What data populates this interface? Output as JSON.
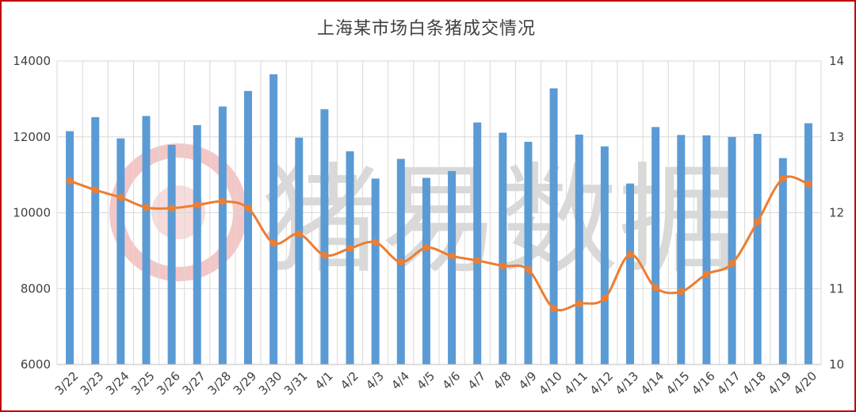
{
  "watermark": {
    "text": "猪易数据"
  },
  "colors": {
    "bar": "#5b9bd5",
    "line": "#ed7d31",
    "border": "#c00000",
    "grid": "#d9d9d9"
  },
  "chart_data": {
    "type": "bar",
    "title": "上海某市场白条猪成交情况",
    "categories": [
      "3/22",
      "3/23",
      "3/24",
      "3/25",
      "3/26",
      "3/27",
      "3/28",
      "3/29",
      "3/30",
      "3/31",
      "4/1",
      "4/2",
      "4/3",
      "4/4",
      "4/5",
      "4/6",
      "4/7",
      "4/8",
      "4/9",
      "4/10",
      "4/11",
      "4/12",
      "4/13",
      "4/14",
      "4/15",
      "4/16",
      "4/17",
      "4/18",
      "4/19",
      "4/20"
    ],
    "series": [
      {
        "type": "bar",
        "axis": "left",
        "values": [
          12150,
          12520,
          11960,
          12550,
          11790,
          12310,
          12800,
          13210,
          13650,
          11980,
          12730,
          11620,
          10900,
          11420,
          10920,
          11100,
          12380,
          12110,
          11870,
          13280,
          12060,
          11750,
          10770,
          12260,
          12050,
          12040,
          12000,
          12080,
          11440,
          12360
        ]
      },
      {
        "type": "line",
        "axis": "right",
        "values": [
          12.42,
          12.3,
          12.2,
          12.07,
          12.06,
          12.1,
          12.15,
          12.06,
          11.6,
          11.72,
          11.44,
          11.53,
          11.61,
          11.35,
          11.54,
          11.43,
          11.37,
          11.3,
          11.25,
          10.74,
          10.8,
          10.87,
          11.45,
          11.01,
          10.96,
          11.19,
          11.33,
          11.88,
          12.45,
          12.38
        ]
      }
    ],
    "y_left": {
      "lim": [
        6000,
        14000
      ],
      "ticks": [
        "6000",
        "8000",
        "10000",
        "12000",
        "14000"
      ]
    },
    "y_right": {
      "lim": [
        10,
        14
      ],
      "ticks": [
        "10",
        "11",
        "12",
        "13",
        "14"
      ]
    },
    "grid": true,
    "legend": "none"
  }
}
